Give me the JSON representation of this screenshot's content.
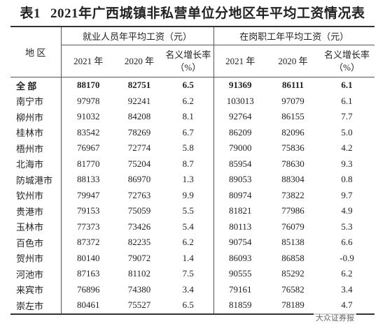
{
  "header": {
    "label": "表1",
    "title": "2021年广西城镇非私营单位分地区年平均工资情况表"
  },
  "table": {
    "region": "地 区",
    "groups": [
      {
        "label": "就业人员年平均工资（元）",
        "columns": [
          "2021 年",
          "2020 年",
          "名义增长率",
          "（%）"
        ]
      },
      {
        "label": "在岗职工年平均工资（元）",
        "columns": [
          "2021 年",
          "2020 年",
          "名义增长率",
          "（%）"
        ]
      }
    ],
    "rows": [
      [
        "全 部",
        "88170",
        "82751",
        "6.5",
        "91369",
        "86111",
        "6.1"
      ],
      [
        "南宁市",
        "97978",
        "92241",
        "6.2",
        "103013",
        "97079",
        "6.1"
      ],
      [
        "柳州市",
        "91032",
        "84208",
        "8.1",
        "92764",
        "86155",
        "7.7"
      ],
      [
        "桂林市",
        "83542",
        "78269",
        "6.7",
        "86209",
        "82096",
        "5.0"
      ],
      [
        "梧州市",
        "76967",
        "72774",
        "5.8",
        "79000",
        "75836",
        "4.2"
      ],
      [
        "北海市",
        "81770",
        "75204",
        "8.7",
        "85954",
        "78630",
        "9.3"
      ],
      [
        "防城港市",
        "88133",
        "86970",
        "1.3",
        "89053",
        "88304",
        "0.8"
      ],
      [
        "钦州市",
        "79947",
        "72763",
        "9.9",
        "80974",
        "73822",
        "9.7"
      ],
      [
        "贵港市",
        "79153",
        "75059",
        "5.5",
        "81821",
        "77986",
        "4.9"
      ],
      [
        "玉林市",
        "77373",
        "73426",
        "5.4",
        "80113",
        "76079",
        "5.3"
      ],
      [
        "百色市",
        "87372",
        "82235",
        "6.2",
        "90754",
        "85138",
        "6.6"
      ],
      [
        "贺州市",
        "80140",
        "79072",
        "1.4",
        "86093",
        "86858",
        "-0.9"
      ],
      [
        "河池市",
        "87163",
        "81102",
        "7.5",
        "90555",
        "85292",
        "6.2"
      ],
      [
        "来宾市",
        "76896",
        "74380",
        "3.4",
        "79161",
        "76582",
        "3.4"
      ],
      [
        "崇左市",
        "80461",
        "75527",
        "6.5",
        "81859",
        "78189",
        "4.7"
      ]
    ]
  },
  "watermark": "大众证券报"
}
